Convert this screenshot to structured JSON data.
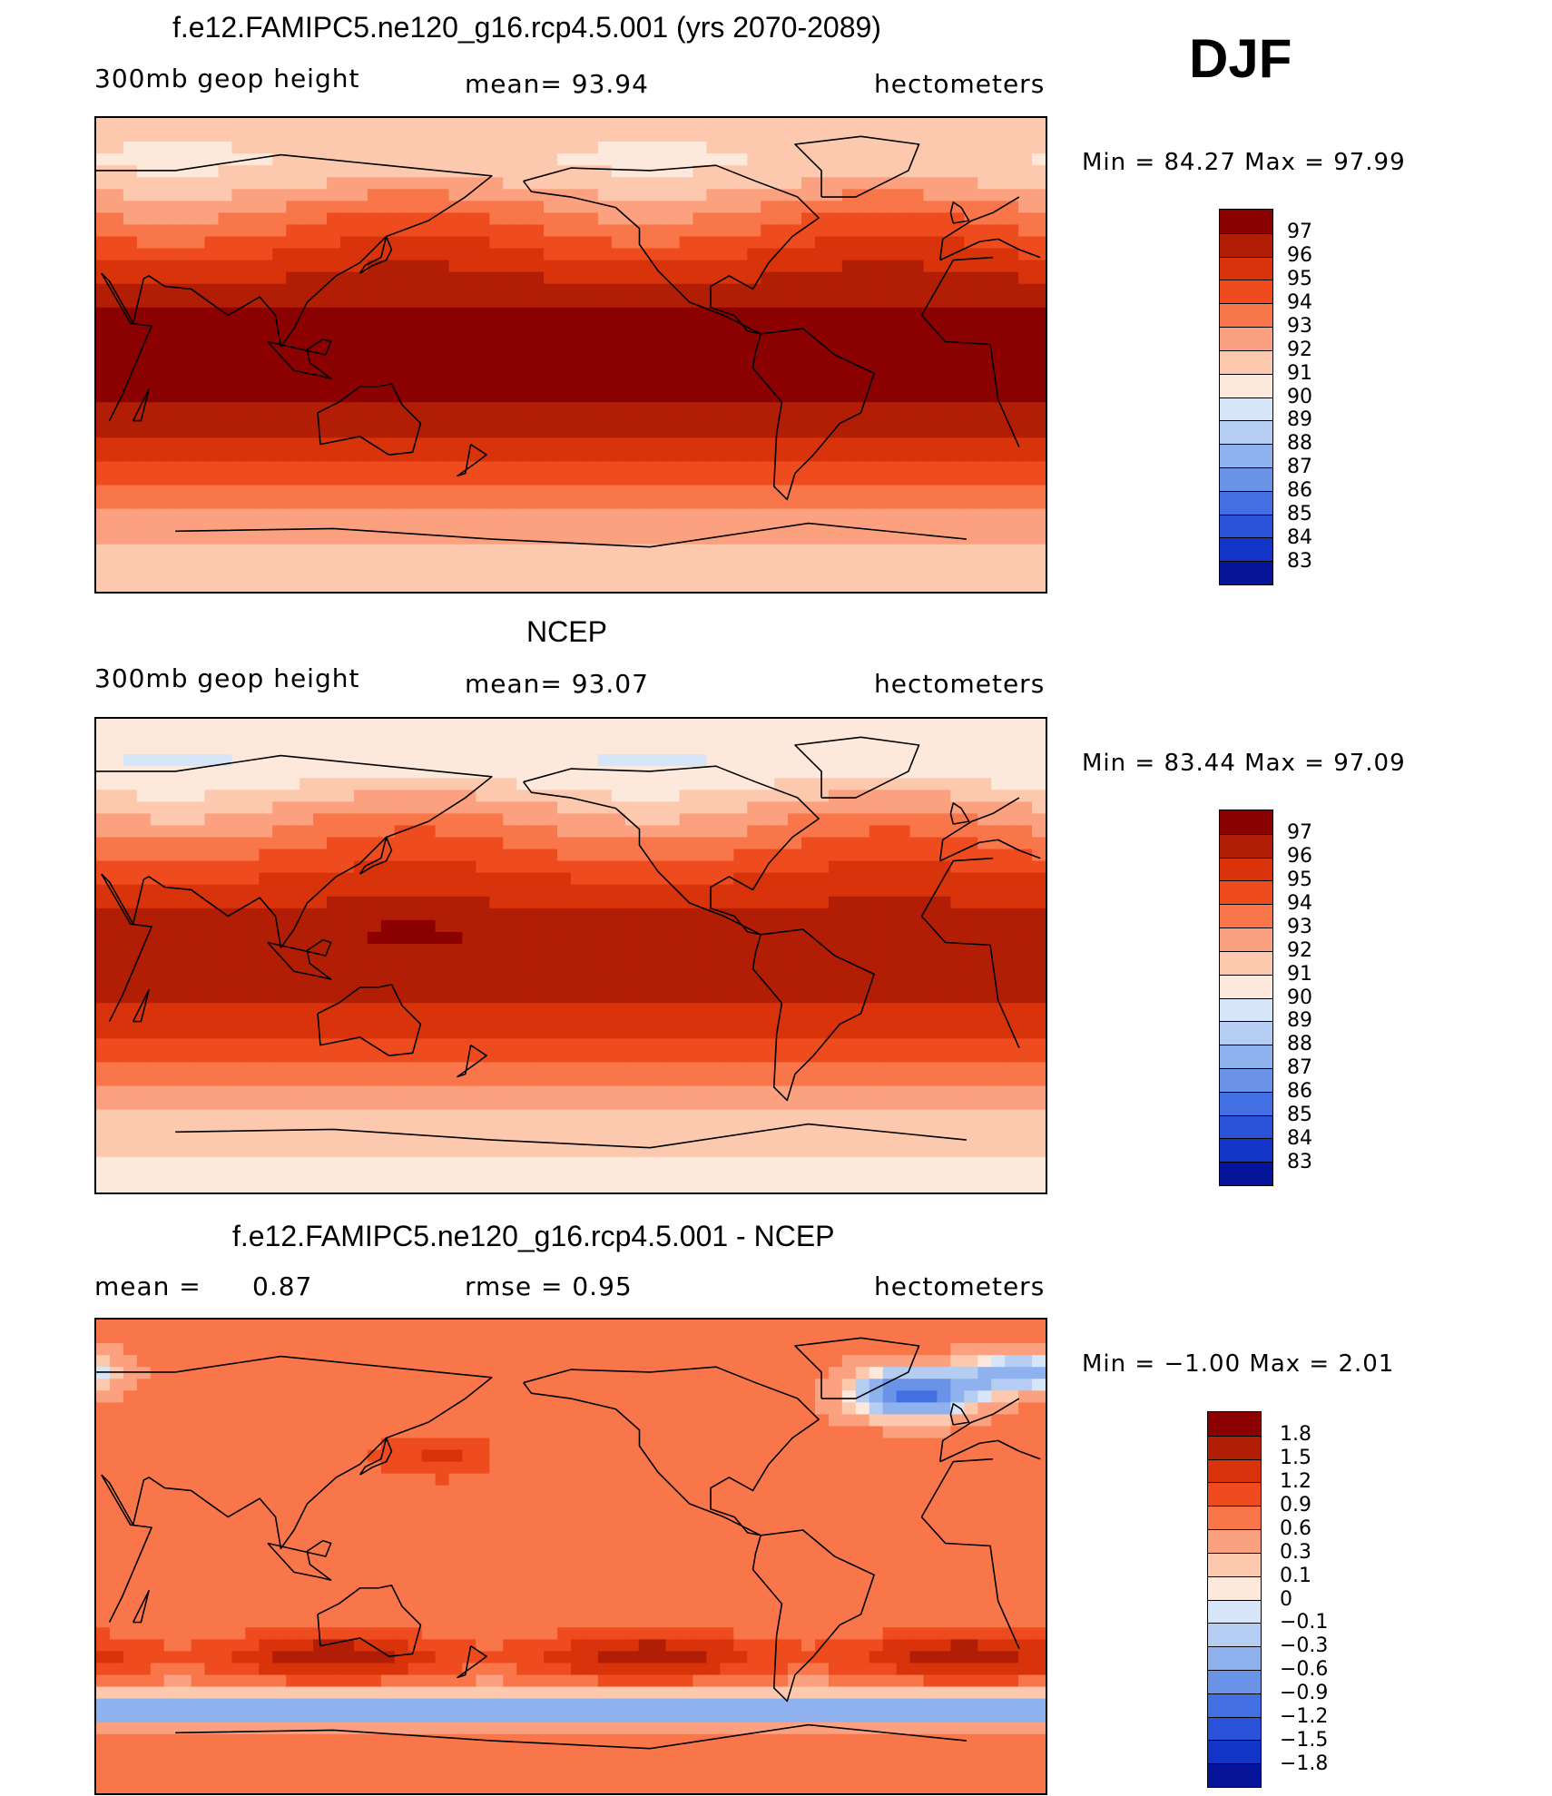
{
  "season": "DJF",
  "panels": [
    {
      "title": "f.e12.FAMIPC5.ne120_g16.rcp4.5.001 (yrs 2070-2089)",
      "variable": "300mb geop height",
      "stat1": "mean=   93.94",
      "stat2": "",
      "units": "hectometers",
      "range_text": "Min =   84.27 Max =   97.99",
      "legend_labels": [
        "97",
        "96",
        "95",
        "94",
        "93",
        "92",
        "91",
        "90",
        "89",
        "88",
        "87",
        "86",
        "85",
        "84",
        "83"
      ],
      "legend_colors": [
        "#8b0000",
        "#b21e05",
        "#d8330b",
        "#ee4b1e",
        "#f9764a",
        "#fca17f",
        "#fdc9ae",
        "#fde9dc",
        "#d6e6f8",
        "#b5cdf3",
        "#8fb2ee",
        "#6a93e8",
        "#4270e2",
        "#2a52d8",
        "#1335c7",
        "#06149a"
      ],
      "field": "clim1"
    },
    {
      "title": "NCEP",
      "variable": "300mb geop height",
      "stat1": "mean=   93.07",
      "stat2": "",
      "units": "hectometers",
      "range_text": "Min =   83.44 Max =   97.09",
      "legend_labels": [
        "97",
        "96",
        "95",
        "94",
        "93",
        "92",
        "91",
        "90",
        "89",
        "88",
        "87",
        "86",
        "85",
        "84",
        "83"
      ],
      "legend_colors": [
        "#8b0000",
        "#b21e05",
        "#d8330b",
        "#ee4b1e",
        "#f9764a",
        "#fca17f",
        "#fdc9ae",
        "#fde9dc",
        "#d6e6f8",
        "#b5cdf3",
        "#8fb2ee",
        "#6a93e8",
        "#4270e2",
        "#2a52d8",
        "#1335c7",
        "#06149a"
      ],
      "field": "clim2"
    },
    {
      "title": "f.e12.FAMIPC5.ne120_g16.rcp4.5.001 - NCEP",
      "variable": "mean =",
      "stat1": "0.87",
      "stat2": "rmse =    0.95",
      "units": "hectometers",
      "range_text": "Min =   −1.00 Max =    2.01",
      "legend_labels": [
        "1.8",
        "1.5",
        "1.2",
        "0.9",
        "0.6",
        "0.3",
        "0.1",
        "0",
        "−0.1",
        "−0.3",
        "−0.6",
        "−0.9",
        "−1.2",
        "−1.5",
        "−1.8"
      ],
      "legend_colors": [
        "#8b0000",
        "#b21e05",
        "#d8330b",
        "#ee4b1e",
        "#f9764a",
        "#fca17f",
        "#fdc9ae",
        "#fde9dc",
        "#d6e6f8",
        "#b5cdf3",
        "#8fb2ee",
        "#6a93e8",
        "#4270e2",
        "#2a52d8",
        "#1335c7",
        "#06149a"
      ],
      "field": "diff"
    }
  ]
}
